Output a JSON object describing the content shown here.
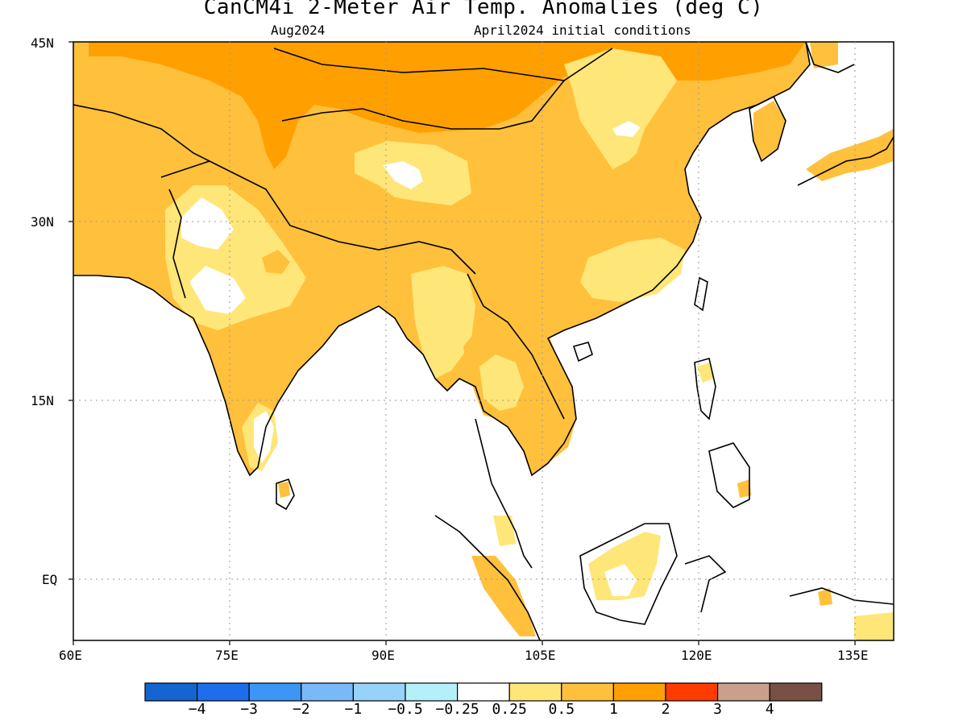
{
  "header": {
    "title": "CanCM4i 2-Meter Air Temp. Anomalies (deg C)",
    "target_month": "Aug2024",
    "initial_conditions": "April2024 initial conditions"
  },
  "axes": {
    "lat_labels": [
      "45N",
      "30N",
      "15N",
      "EQ"
    ],
    "lon_labels": [
      "60E",
      "75E",
      "90E",
      "105E",
      "120E",
      "135E"
    ]
  },
  "colorbar": {
    "colors": [
      "#1464d2",
      "#1e6eeb",
      "#3c96f5",
      "#78b9fa",
      "#96d2fa",
      "#b4f0fa",
      "#ffffff",
      "#ffe678",
      "#ffc03c",
      "#ffa000",
      "#ff3c00",
      "#c8a08c",
      "#785046"
    ],
    "labels": [
      "−4",
      "−3",
      "−2",
      "−1",
      "−0.5",
      "−0.25",
      "0.25",
      "0.5",
      "1",
      "2",
      "3",
      "4"
    ]
  },
  "colors": {
    "anomaly_0_25_to_0_5": "#ffe678",
    "anomaly_0_5_to_1": "#ffc03c",
    "anomaly_1_to_2": "#ffa000",
    "coastline": "#000000",
    "gridline": "#999999"
  }
}
